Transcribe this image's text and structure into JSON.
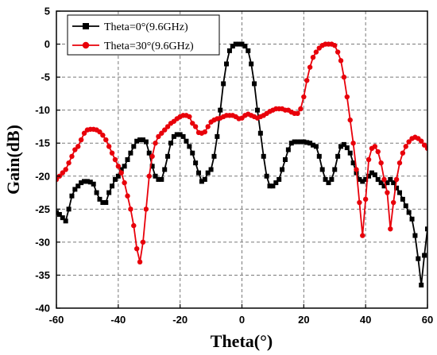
{
  "chart_data": {
    "type": "line",
    "xlabel": "Theta(°)",
    "ylabel": "Gain(dB)",
    "xlim": [
      -60,
      60
    ],
    "ylim": [
      -40,
      5
    ],
    "xticks": [
      -60,
      -40,
      -20,
      0,
      20,
      40,
      60
    ],
    "yticks": [
      5,
      0,
      -5,
      -10,
      -15,
      -20,
      -25,
      -30,
      -35,
      -40
    ],
    "grid": true,
    "grid_style": "dashed",
    "legend_position": "top-left",
    "series": [
      {
        "name": "Theta=0°(9.6GHz)",
        "color": "#000000",
        "marker": "square",
        "x": [
          -60,
          -59,
          -58,
          -57,
          -56,
          -55,
          -54,
          -53,
          -52,
          -51,
          -50,
          -49,
          -48,
          -47,
          -46,
          -45,
          -44,
          -43,
          -42,
          -41,
          -40,
          -39,
          -38,
          -37,
          -36,
          -35,
          -34,
          -33,
          -32,
          -31,
          -30,
          -29,
          -28,
          -27,
          -26,
          -25,
          -24,
          -23,
          -22,
          -21,
          -20,
          -19,
          -18,
          -17,
          -16,
          -15,
          -14,
          -13,
          -12,
          -11,
          -10,
          -9,
          -8,
          -7,
          -6,
          -5,
          -4,
          -3,
          -2,
          -1,
          0,
          1,
          2,
          3,
          4,
          5,
          6,
          7,
          8,
          9,
          10,
          11,
          12,
          13,
          14,
          15,
          16,
          17,
          18,
          19,
          20,
          21,
          22,
          23,
          24,
          25,
          26,
          27,
          28,
          29,
          30,
          31,
          32,
          33,
          34,
          35,
          36,
          37,
          38,
          39,
          40,
          41,
          42,
          43,
          44,
          45,
          46,
          47,
          48,
          49,
          50,
          51,
          52,
          53,
          54,
          55,
          56,
          57,
          58,
          59,
          60
        ],
        "values": [
          -25.5,
          -25.8,
          -26.3,
          -26.8,
          -25,
          -23,
          -22,
          -21.5,
          -21,
          -20.8,
          -20.8,
          -20.9,
          -21.2,
          -22.5,
          -23.5,
          -24,
          -24,
          -22.5,
          -21.5,
          -20.5,
          -20,
          -19,
          -18.5,
          -17.5,
          -16.5,
          -15.5,
          -14.7,
          -14.5,
          -14.5,
          -14.8,
          -16.5,
          -18.5,
          -20,
          -20.5,
          -20.5,
          -19,
          -17,
          -15,
          -14,
          -13.7,
          -13.7,
          -14,
          -14.7,
          -15.5,
          -16.5,
          -18,
          -19.5,
          -20.8,
          -20.5,
          -19.5,
          -19,
          -17,
          -14,
          -10,
          -6,
          -3,
          -1,
          -0.3,
          0,
          0,
          0,
          -0.3,
          -1,
          -3,
          -6,
          -10,
          -13.5,
          -17,
          -20,
          -21.5,
          -21.5,
          -21,
          -20.5,
          -19,
          -17.5,
          -16,
          -15,
          -14.8,
          -14.8,
          -14.8,
          -14.8,
          -14.9,
          -15,
          -15.3,
          -15.5,
          -17,
          -19,
          -20.5,
          -21,
          -20.5,
          -19,
          -17,
          -15.5,
          -15.2,
          -15.7,
          -16.5,
          -18,
          -19.5,
          -20.5,
          -20.8,
          -20.5,
          -20,
          -19.5,
          -19.8,
          -20.5,
          -21,
          -21.5,
          -21,
          -20.5,
          -21,
          -21.8,
          -22.5,
          -23.5,
          -24.5,
          -25.5,
          -26.5,
          -29,
          -32.5,
          -36.5,
          -32,
          -28
        ]
      },
      {
        "name": "Theta=30°(9.6GHz)",
        "color": "#e8000a",
        "marker": "circle",
        "x": [
          -60,
          -59,
          -58,
          -57,
          -56,
          -55,
          -54,
          -53,
          -52,
          -51,
          -50,
          -49,
          -48,
          -47,
          -46,
          -45,
          -44,
          -43,
          -42,
          -41,
          -40,
          -39,
          -38,
          -37,
          -36,
          -35,
          -34,
          -33,
          -32,
          -31,
          -30,
          -29,
          -28,
          -27,
          -26,
          -25,
          -24,
          -23,
          -22,
          -21,
          -20,
          -19,
          -18,
          -17,
          -16,
          -15,
          -14,
          -13,
          -12,
          -11,
          -10,
          -9,
          -8,
          -7,
          -6,
          -5,
          -4,
          -3,
          -2,
          -1,
          0,
          1,
          2,
          3,
          4,
          5,
          6,
          7,
          8,
          9,
          10,
          11,
          12,
          13,
          14,
          15,
          16,
          17,
          18,
          19,
          20,
          21,
          22,
          23,
          24,
          25,
          26,
          27,
          28,
          29,
          30,
          31,
          32,
          33,
          34,
          35,
          36,
          37,
          38,
          39,
          40,
          41,
          42,
          43,
          44,
          45,
          46,
          47,
          48,
          49,
          50,
          51,
          52,
          53,
          54,
          55,
          56,
          57,
          58,
          59,
          60
        ],
        "values": [
          -20.5,
          -20,
          -19.5,
          -19,
          -18,
          -17,
          -16,
          -15.5,
          -14.5,
          -13.5,
          -13,
          -12.9,
          -12.9,
          -13,
          -13.3,
          -13.8,
          -14.5,
          -15.5,
          -16.5,
          -17.5,
          -18.5,
          -19.5,
          -21,
          -23,
          -25,
          -27.5,
          -31,
          -33,
          -30,
          -25,
          -20,
          -17,
          -15,
          -14,
          -13.5,
          -13,
          -12.5,
          -12,
          -11.7,
          -11.3,
          -11,
          -10.8,
          -10.8,
          -11,
          -12,
          -12.5,
          -13.4,
          -13.5,
          -13.3,
          -12.5,
          -11.8,
          -11.5,
          -11.3,
          -11.2,
          -11,
          -10.8,
          -10.8,
          -10.8,
          -11,
          -11.3,
          -11.2,
          -10.8,
          -10.6,
          -10.8,
          -11,
          -11.2,
          -11,
          -10.8,
          -10.5,
          -10.2,
          -10,
          -9.8,
          -9.8,
          -9.8,
          -10,
          -10,
          -10.3,
          -10.5,
          -10.5,
          -9.8,
          -8,
          -5.5,
          -3.5,
          -2,
          -1.2,
          -0.6,
          -0.2,
          0,
          0,
          0,
          -0.2,
          -1.2,
          -2.5,
          -5,
          -8,
          -11.5,
          -15,
          -19,
          -24,
          -29,
          -23.5,
          -17.5,
          -15.8,
          -15.5,
          -16.3,
          -18,
          -20.5,
          -22.5,
          -28,
          -24,
          -20.5,
          -18,
          -16.5,
          -15.5,
          -14.8,
          -14.3,
          -14.1,
          -14.3,
          -14.7,
          -15.3,
          -15.8
        ]
      }
    ]
  }
}
